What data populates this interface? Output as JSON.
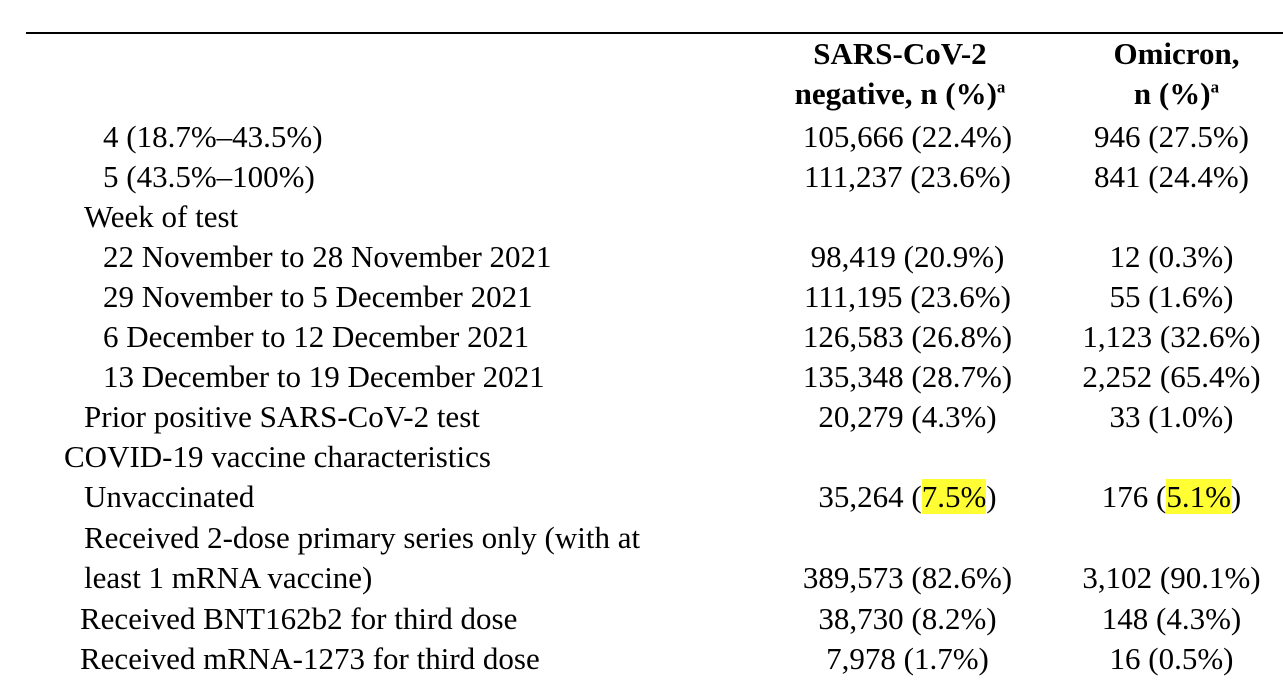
{
  "header": {
    "col1_line1": "SARS-CoV-2",
    "col1_line2": "negative, n (%)",
    "col1_sup": "a",
    "col2_line1": "Omicron,",
    "col2_line2": "n (%)",
    "col2_sup": "a"
  },
  "rows": [
    {
      "label": "4 (18.7%–43.5%)",
      "neg": "105,666 (22.4%)",
      "omi": "946 (27.5%)"
    },
    {
      "label": "5 (43.5%–100%)",
      "neg": "111,237 (23.6%)",
      "omi": "841 (24.4%)"
    },
    {
      "label": "Week of test"
    },
    {
      "label": "22 November to 28 November 2021",
      "neg": "98,419 (20.9%)",
      "omi": "12 (0.3%)"
    },
    {
      "label": "29 November to 5 December 2021",
      "neg": "111,195 (23.6%)",
      "omi": "55 (1.6%)"
    },
    {
      "label": "6 December to 12 December 2021",
      "neg": "126,583 (26.8%)",
      "omi": "1,123 (32.6%)"
    },
    {
      "label": "13 December to 19 December 2021",
      "neg": "135,348 (28.7%)",
      "omi": "2,252 (65.4%)"
    },
    {
      "label": "Prior positive SARS-CoV-2 test",
      "neg": "20,279 (4.3%)",
      "omi": "33 (1.0%)"
    },
    {
      "label": "COVID-19 vaccine characteristics"
    },
    {
      "label": "Unvaccinated",
      "neg_pre": "35,264 (",
      "neg_hl": "7.5%",
      "neg_post": ")",
      "omi_pre": "176 (",
      "omi_hl": "5.1%",
      "omi_post": ")"
    },
    {
      "label": "Received 2-dose primary series only (with at"
    },
    {
      "label": "least 1 mRNA vaccine)",
      "neg": "389,573 (82.6%)",
      "omi": "3,102 (90.1%)"
    },
    {
      "label": "Received BNT162b2 for third dose",
      "neg": "38,730 (8.2%)",
      "omi": "148 (4.3%)"
    },
    {
      "label": "Received mRNA-1273 for third dose",
      "neg": "7,978 (1.7%)",
      "omi": "16 (0.5%)"
    }
  ]
}
